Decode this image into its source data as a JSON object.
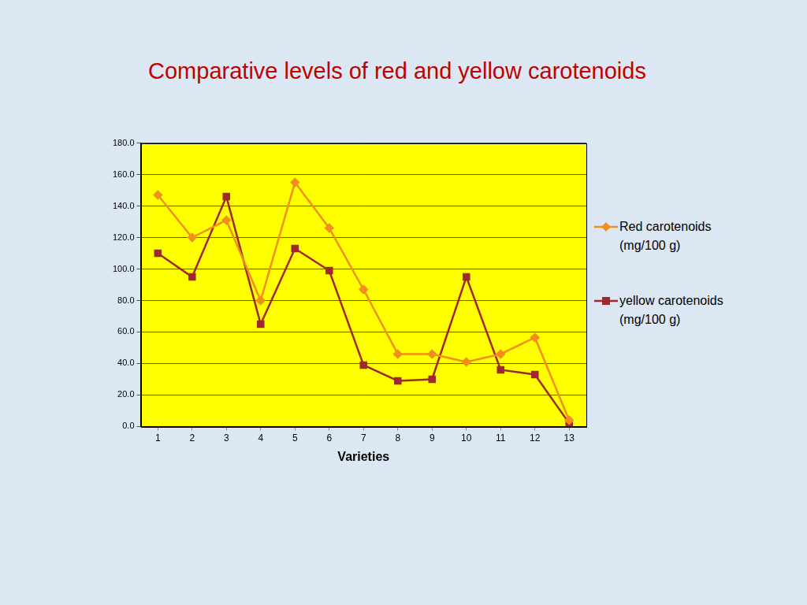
{
  "chart_data": {
    "type": "line",
    "title": "Comparative levels of red and yellow carotenoids",
    "x_label": "Varieties",
    "categories": [
      "1",
      "2",
      "3",
      "4",
      "5",
      "6",
      "7",
      "8",
      "9",
      "10",
      "11",
      "12",
      "13"
    ],
    "series": [
      {
        "name": "Red carotenoids (mg/100 g)",
        "color": "#f28e1c",
        "marker": "diamond",
        "values": [
          147,
          120,
          131,
          80,
          155,
          126,
          87,
          46,
          46,
          41,
          46,
          56.5,
          4
        ]
      },
      {
        "name": "yellow carotenoids (mg/100 g)",
        "color": "#a0282e",
        "marker": "square",
        "values": [
          110,
          95,
          146,
          65,
          113,
          99,
          39,
          29,
          30,
          95,
          36,
          33,
          2
        ]
      }
    ],
    "ylim": [
      0,
      180
    ],
    "yticks": [
      {
        "value": 0,
        "label": "0.0"
      },
      {
        "value": 20,
        "label": "20.0"
      },
      {
        "value": 40,
        "label": "40.0"
      },
      {
        "value": 60,
        "label": "60.0"
      },
      {
        "value": 80,
        "label": "80.0"
      },
      {
        "value": 100,
        "label": "100.0"
      },
      {
        "value": 120,
        "label": "120.0"
      },
      {
        "value": 140,
        "label": "140.0"
      },
      {
        "value": 160,
        "label": "160.0"
      },
      {
        "value": 180,
        "label": "180.0"
      }
    ],
    "grid": true,
    "legend": "right"
  }
}
